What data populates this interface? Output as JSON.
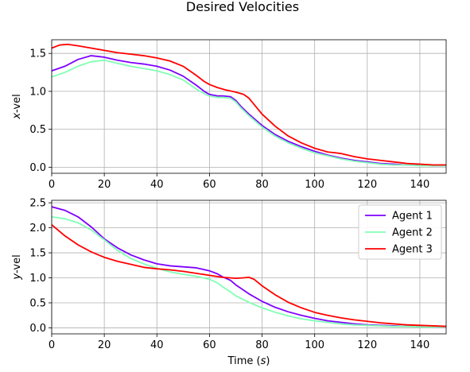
{
  "figure": {
    "title": "Desired Velocities"
  },
  "chart_data": [
    {
      "type": "line",
      "ylabel": "x-vel",
      "ylabel_parts": [
        "x",
        "-vel"
      ],
      "xlabel": "",
      "xlim": [
        0,
        150
      ],
      "ylim": [
        -0.08,
        1.68
      ],
      "xticks": [
        0,
        20,
        40,
        60,
        80,
        100,
        120,
        140
      ],
      "yticks": [
        0.0,
        0.5,
        1.0,
        1.5
      ],
      "ytick_labels": [
        "0.0",
        "0.5",
        "1.0",
        "1.5"
      ],
      "grid": true,
      "legend": null,
      "series": [
        {
          "name": "Agent 1",
          "color": "#7f00ff",
          "x": [
            0,
            5,
            10,
            15,
            20,
            25,
            30,
            35,
            40,
            45,
            50,
            55,
            58,
            60,
            63,
            65,
            68,
            70,
            72,
            75,
            80,
            85,
            90,
            95,
            100,
            105,
            110,
            115,
            120,
            125,
            130,
            135,
            140,
            145,
            150
          ],
          "y": [
            1.27,
            1.33,
            1.42,
            1.47,
            1.45,
            1.41,
            1.38,
            1.36,
            1.33,
            1.28,
            1.2,
            1.08,
            1.0,
            0.96,
            0.94,
            0.94,
            0.93,
            0.88,
            0.8,
            0.7,
            0.55,
            0.43,
            0.34,
            0.27,
            0.21,
            0.16,
            0.12,
            0.09,
            0.07,
            0.05,
            0.04,
            0.03,
            0.03,
            0.02,
            0.02
          ]
        },
        {
          "name": "Agent 2",
          "color": "#80ffb4",
          "x": [
            0,
            5,
            10,
            15,
            20,
            25,
            30,
            35,
            40,
            45,
            50,
            55,
            58,
            60,
            63,
            65,
            68,
            70,
            72,
            75,
            80,
            85,
            90,
            95,
            100,
            105,
            110,
            115,
            120,
            125,
            130,
            135,
            140,
            145,
            150
          ],
          "y": [
            1.19,
            1.25,
            1.33,
            1.39,
            1.41,
            1.37,
            1.33,
            1.3,
            1.27,
            1.22,
            1.15,
            1.03,
            0.97,
            0.94,
            0.92,
            0.92,
            0.91,
            0.86,
            0.78,
            0.68,
            0.53,
            0.41,
            0.32,
            0.25,
            0.19,
            0.15,
            0.11,
            0.08,
            0.06,
            0.04,
            0.03,
            0.03,
            0.02,
            0.02,
            0.02
          ]
        },
        {
          "name": "Agent 3",
          "color": "#ff0000",
          "x": [
            0,
            3,
            6,
            10,
            15,
            20,
            25,
            30,
            35,
            40,
            45,
            50,
            55,
            58,
            60,
            63,
            66,
            70,
            73,
            75,
            80,
            85,
            90,
            95,
            100,
            105,
            108,
            110,
            115,
            120,
            125,
            130,
            135,
            140,
            145,
            150
          ],
          "y": [
            1.57,
            1.61,
            1.62,
            1.6,
            1.57,
            1.54,
            1.51,
            1.49,
            1.47,
            1.44,
            1.4,
            1.33,
            1.21,
            1.13,
            1.09,
            1.05,
            1.02,
            0.99,
            0.96,
            0.91,
            0.7,
            0.54,
            0.41,
            0.32,
            0.25,
            0.2,
            0.19,
            0.18,
            0.14,
            0.11,
            0.09,
            0.07,
            0.05,
            0.04,
            0.03,
            0.03
          ]
        }
      ]
    },
    {
      "type": "line",
      "ylabel": "y-vel",
      "ylabel_parts": [
        "y",
        "-vel"
      ],
      "xlabel": "Time (s)",
      "xlabel_parts": [
        "Time (",
        "s",
        ")"
      ],
      "xlim": [
        0,
        150
      ],
      "ylim": [
        -0.12,
        2.55
      ],
      "xticks": [
        0,
        20,
        40,
        60,
        80,
        100,
        120,
        140
      ],
      "yticks": [
        0.0,
        0.5,
        1.0,
        1.5,
        2.0,
        2.5
      ],
      "ytick_labels": [
        "0.0",
        "0.5",
        "1.0",
        "1.5",
        "2.0",
        "2.5"
      ],
      "grid": true,
      "legend": "top-right",
      "series": [
        {
          "name": "Agent 1",
          "color": "#7f00ff",
          "x": [
            0,
            5,
            10,
            15,
            20,
            25,
            30,
            35,
            40,
            45,
            50,
            55,
            60,
            63,
            65,
            68,
            70,
            75,
            80,
            85,
            90,
            95,
            100,
            105,
            110,
            115,
            120,
            125,
            130,
            135,
            140,
            145,
            150
          ],
          "y": [
            2.42,
            2.35,
            2.22,
            2.02,
            1.78,
            1.6,
            1.46,
            1.36,
            1.28,
            1.24,
            1.22,
            1.2,
            1.14,
            1.08,
            1.02,
            0.95,
            0.86,
            0.68,
            0.53,
            0.41,
            0.32,
            0.25,
            0.19,
            0.14,
            0.11,
            0.08,
            0.06,
            0.05,
            0.04,
            0.03,
            0.03,
            0.02,
            0.02
          ]
        },
        {
          "name": "Agent 2",
          "color": "#80ffb4",
          "x": [
            0,
            5,
            10,
            15,
            20,
            25,
            30,
            35,
            40,
            45,
            50,
            55,
            60,
            63,
            65,
            68,
            70,
            75,
            80,
            85,
            90,
            95,
            100,
            105,
            110,
            115,
            120,
            125,
            130,
            135,
            140,
            145,
            150
          ],
          "y": [
            2.22,
            2.18,
            2.1,
            1.96,
            1.76,
            1.55,
            1.39,
            1.28,
            1.19,
            1.12,
            1.07,
            1.03,
            0.97,
            0.9,
            0.82,
            0.72,
            0.64,
            0.51,
            0.4,
            0.31,
            0.24,
            0.18,
            0.14,
            0.11,
            0.08,
            0.06,
            0.05,
            0.04,
            0.03,
            0.03,
            0.02,
            0.02,
            0.02
          ]
        },
        {
          "name": "Agent 3",
          "color": "#ff0000",
          "x": [
            0,
            5,
            10,
            15,
            20,
            25,
            30,
            35,
            40,
            45,
            50,
            55,
            60,
            65,
            70,
            73,
            75,
            77,
            80,
            85,
            90,
            95,
            100,
            105,
            110,
            115,
            120,
            125,
            130,
            135,
            140,
            145,
            150
          ],
          "y": [
            2.06,
            1.84,
            1.66,
            1.52,
            1.41,
            1.33,
            1.27,
            1.21,
            1.18,
            1.16,
            1.13,
            1.09,
            1.05,
            1.01,
            0.99,
            1.0,
            1.01,
            0.97,
            0.84,
            0.66,
            0.51,
            0.4,
            0.31,
            0.25,
            0.2,
            0.16,
            0.13,
            0.1,
            0.08,
            0.06,
            0.05,
            0.04,
            0.03
          ]
        }
      ]
    }
  ]
}
